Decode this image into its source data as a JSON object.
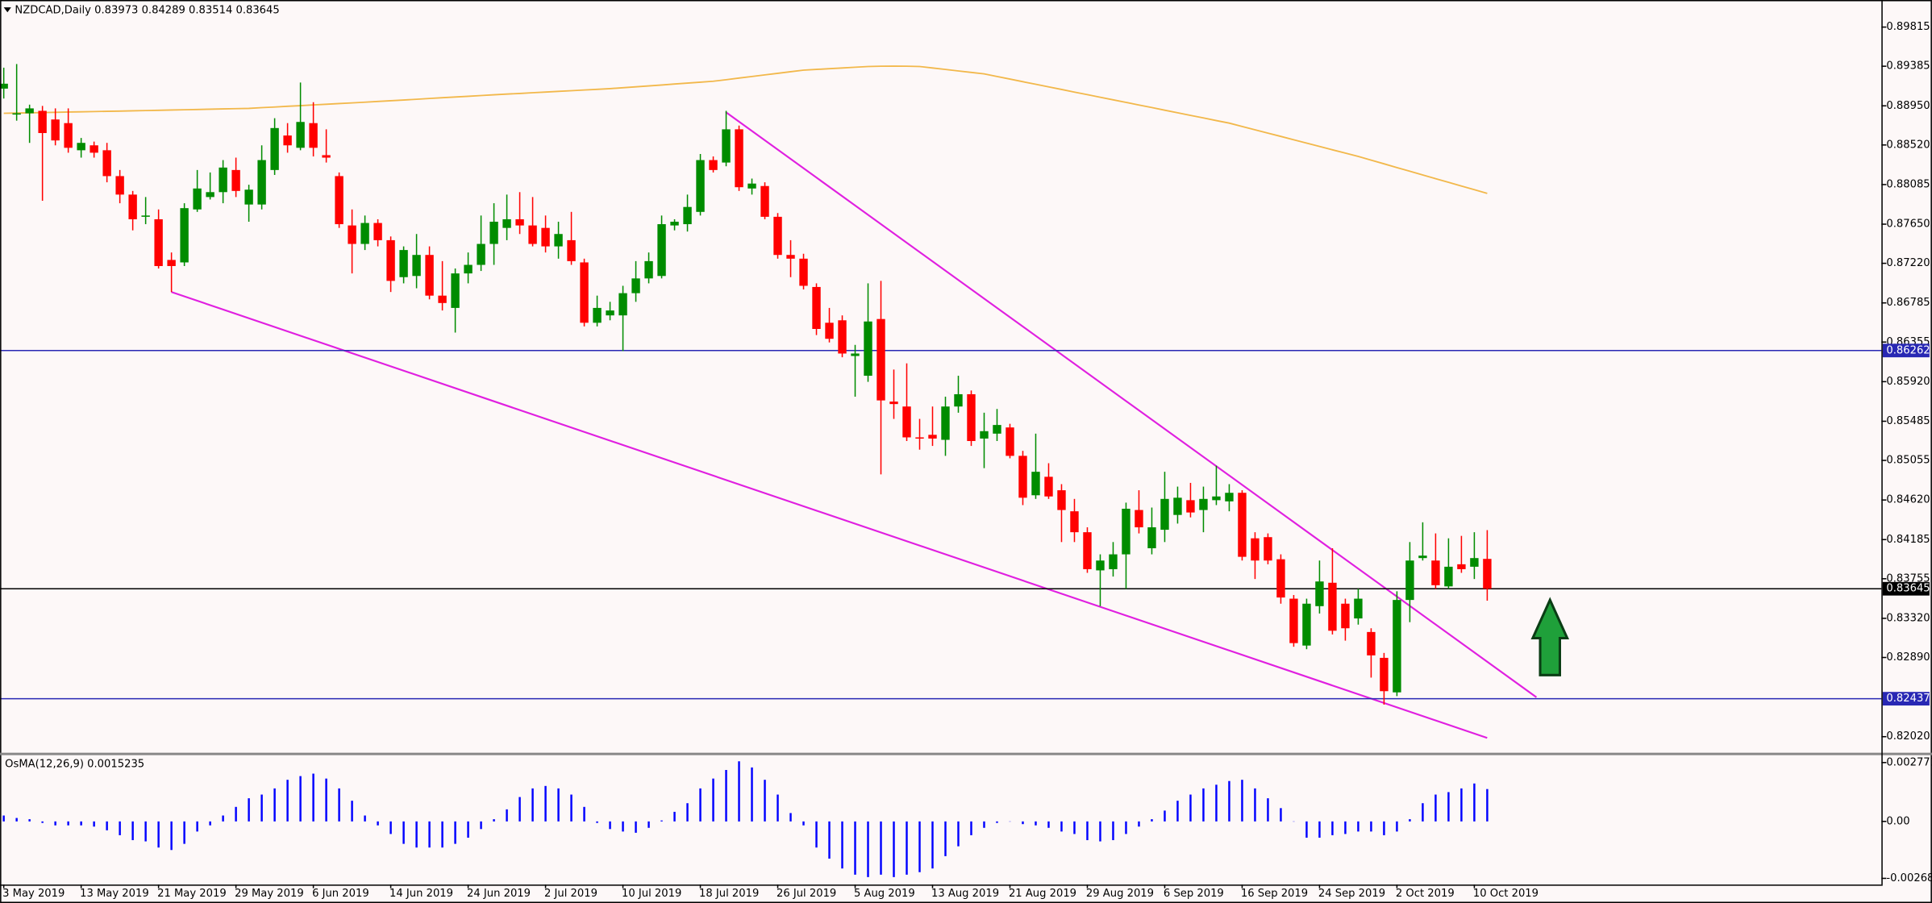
{
  "chart_data": [
    {
      "type": "candlestick",
      "title": "NZDCAD,Daily  0.83973 0.84289 0.83514 0.83645",
      "categories": [
        "3 May 2019",
        null,
        null,
        null,
        null,
        null,
        "13 May 2019",
        null,
        null,
        null,
        null,
        null,
        "21 May 2019",
        null,
        null,
        null,
        null,
        null,
        "29 May 2019",
        null,
        null,
        null,
        null,
        null,
        "6 Jun 2019",
        null,
        null,
        null,
        null,
        null,
        "14 Jun 2019",
        null,
        null,
        null,
        null,
        null,
        "24 Jun 2019",
        null,
        null,
        null,
        null,
        null,
        "2 Jul 2019",
        null,
        null,
        null,
        null,
        null,
        "10 Jul 2019",
        null,
        null,
        null,
        null,
        null,
        "18 Jul 2019",
        null,
        null,
        null,
        null,
        null,
        "26 Jul 2019",
        null,
        null,
        null,
        null,
        null,
        "5 Aug 2019",
        null,
        null,
        null,
        null,
        null,
        "13 Aug 2019",
        null,
        null,
        null,
        null,
        null,
        "21 Aug 2019",
        null,
        null,
        null,
        null,
        null,
        "29 Aug 2019",
        null,
        null,
        null,
        null,
        null,
        "6 Sep 2019",
        null,
        null,
        null,
        null,
        null,
        "16 Sep 2019",
        null,
        null,
        null,
        null,
        null,
        "24 Sep 2019",
        null,
        null,
        null,
        null,
        null,
        "2 Oct 2019",
        null,
        null,
        null,
        null,
        null,
        "10 Oct 2019",
        null
      ],
      "open": [
        0.89139,
        0.88854,
        0.88868,
        0.88895,
        0.888,
        0.8876,
        0.88462,
        0.88516,
        0.88462,
        0.88178,
        0.87975,
        0.87731,
        0.87704,
        0.87257,
        0.8723,
        0.87812,
        0.87948,
        0.88002,
        0.88245,
        0.87866,
        0.87866,
        0.88245,
        0.88624,
        0.88489,
        0.8876,
        0.88408,
        0.88178,
        0.87636,
        0.87433,
        0.87663,
        0.87474,
        0.87068,
        0.87081,
        0.87312,
        0.86865,
        0.8673,
        0.87109,
        0.87203,
        0.87433,
        0.87609,
        0.87704,
        0.87636,
        0.87609,
        0.87406,
        0.87474,
        0.8723,
        0.86567,
        0.86648,
        0.86648,
        0.86892,
        0.87054,
        0.87081,
        0.87636,
        0.8765,
        0.87785,
        0.88354,
        0.88327,
        0.88692,
        0.88042,
        0.88069,
        0.87731,
        0.87312,
        0.87271,
        0.8696,
        0.86567,
        0.86594,
        0.86202,
        0.85985,
        0.86608,
        0.85701,
        0.85647,
        0.85308,
        0.85336,
        0.85281,
        0.85647,
        0.85782,
        0.85295,
        0.85349,
        0.85417,
        0.85105,
        0.84672,
        0.84875,
        0.84727,
        0.84496,
        0.84266,
        0.83847,
        0.8386,
        0.84023,
        0.8451,
        0.8409,
        0.84293,
        0.84456,
        0.84618,
        0.8451,
        0.84618,
        0.84605,
        0.84699,
        0.84199,
        0.84212,
        0.83969,
        0.83536,
        0.83021,
        0.83454,
        0.83711,
        0.83481,
        0.83319,
        0.8317,
        0.82886,
        0.82507,
        0.83522,
        0.83982,
        0.83955,
        0.83671,
        0.83914,
        0.83887,
        0.83973
      ],
      "high": [
        0.89369,
        0.89409,
        0.88963,
        0.88949,
        0.88922,
        0.88922,
        0.88597,
        0.88557,
        0.88543,
        0.88245,
        0.88015,
        0.87948,
        0.87812,
        0.87339,
        0.8788,
        0.88245,
        0.88218,
        0.88354,
        0.88381,
        0.88083,
        0.88516,
        0.88814,
        0.8876,
        0.89206,
        0.8899,
        0.88692,
        0.88218,
        0.87812,
        0.87745,
        0.87704,
        0.87515,
        0.87406,
        0.87542,
        0.87406,
        0.87244,
        0.87163,
        0.87339,
        0.87745,
        0.8788,
        0.87975,
        0.88002,
        0.87948,
        0.87745,
        0.87677,
        0.87785,
        0.87271,
        0.86865,
        0.86797,
        0.86973,
        0.87244,
        0.87339,
        0.87745,
        0.87704,
        0.87975,
        0.88421,
        0.88394,
        0.88895,
        0.88733,
        0.88151,
        0.8811,
        0.87772,
        0.87474,
        0.87325,
        0.87,
        0.8673,
        0.86648,
        0.86324,
        0.87,
        0.87027,
        0.86053,
        0.86121,
        0.85511,
        0.85647,
        0.85755,
        0.85985,
        0.85823,
        0.85579,
        0.8562,
        0.85457,
        0.8516,
        0.85349,
        0.85024,
        0.84794,
        0.84632,
        0.8432,
        0.84023,
        0.84158,
        0.84591,
        0.84727,
        0.84537,
        0.8493,
        0.84767,
        0.84808,
        0.84767,
        0.84997,
        0.84794,
        0.84727,
        0.84266,
        0.84253,
        0.84023,
        0.83576,
        0.83536,
        0.83955,
        0.8409,
        0.83536,
        0.83644,
        0.83211,
        0.8294,
        0.83617,
        0.84158,
        0.84375,
        0.84253,
        0.84199,
        0.84226,
        0.84266,
        0.84289
      ],
      "low": [
        0.8903,
        0.88787,
        0.88543,
        0.87907,
        0.88516,
        0.88435,
        0.88381,
        0.88381,
        0.8811,
        0.8788,
        0.87582,
        0.8765,
        0.87163,
        0.86905,
        0.8719,
        0.87785,
        0.87921,
        0.8788,
        0.87948,
        0.87677,
        0.87812,
        0.88191,
        0.88435,
        0.88462,
        0.88394,
        0.88327,
        0.87609,
        0.87109,
        0.87366,
        0.87406,
        0.86905,
        0.87,
        0.86946,
        0.86824,
        0.86702,
        0.86459,
        0.87,
        0.87136,
        0.87203,
        0.87474,
        0.87542,
        0.87406,
        0.87339,
        0.87271,
        0.87203,
        0.86527,
        0.86527,
        0.86594,
        0.86256,
        0.86797,
        0.87,
        0.87054,
        0.87582,
        0.87569,
        0.87745,
        0.88218,
        0.88286,
        0.88015,
        0.87975,
        0.87704,
        0.87271,
        0.87068,
        0.86933,
        0.86432,
        0.86351,
        0.86188,
        0.85755,
        0.85918,
        0.84902,
        0.85511,
        0.85268,
        0.85173,
        0.85214,
        0.85105,
        0.85579,
        0.85214,
        0.8497,
        0.85268,
        0.85078,
        0.84564,
        0.84632,
        0.84632,
        0.84158,
        0.84158,
        0.8382,
        0.83454,
        0.83779,
        0.83644,
        0.84253,
        0.84023,
        0.84158,
        0.84361,
        0.84429,
        0.84266,
        0.84564,
        0.84496,
        0.83955,
        0.83752,
        0.83914,
        0.83481,
        0.83008,
        0.82981,
        0.83373,
        0.83143,
        0.83075,
        0.83251,
        0.82669,
        0.82372,
        0.82466,
        0.83278,
        0.83955,
        0.83644,
        0.83644,
        0.8382,
        0.83752,
        0.83514
      ],
      "close": [
        0.89193,
        0.88868,
        0.88922,
        0.88651,
        0.8857,
        0.88489,
        0.88543,
        0.88435,
        0.88178,
        0.87975,
        0.87704,
        0.87745,
        0.8719,
        0.8719,
        0.87826,
        0.88042,
        0.88002,
        0.88272,
        0.88015,
        0.88029,
        0.88354,
        0.88706,
        0.88516,
        0.88773,
        0.88489,
        0.88381,
        0.8765,
        0.87433,
        0.87663,
        0.87474,
        0.87027,
        0.87366,
        0.87312,
        0.86865,
        0.86784,
        0.87109,
        0.87203,
        0.87433,
        0.87677,
        0.87704,
        0.87636,
        0.87433,
        0.87406,
        0.87542,
        0.87244,
        0.86567,
        0.8673,
        0.86702,
        0.86892,
        0.87054,
        0.87244,
        0.8765,
        0.87677,
        0.87839,
        0.88354,
        0.88245,
        0.88692,
        0.88056,
        0.88096,
        0.87731,
        0.87312,
        0.87271,
        0.86973,
        0.86499,
        0.86391,
        0.86229,
        0.86229,
        0.86581,
        0.85714,
        0.85674,
        0.85308,
        0.85295,
        0.85295,
        0.85647,
        0.85782,
        0.85268,
        0.85376,
        0.85444,
        0.85105,
        0.84645,
        0.8493,
        0.84659,
        0.8451,
        0.84266,
        0.8386,
        0.83955,
        0.84023,
        0.84524,
        0.8432,
        0.8432,
        0.84632,
        0.84645,
        0.84483,
        0.84632,
        0.84659,
        0.84699,
        0.83996,
        0.83955,
        0.83955,
        0.83549,
        0.83048,
        0.83481,
        0.83725,
        0.83184,
        0.83211,
        0.83536,
        0.82913,
        0.8252,
        0.83522,
        0.83955,
        0.84009,
        0.83684,
        0.83887,
        0.8386,
        0.83982,
        0.83645
      ],
      "up_color": "#008c00",
      "down_color": "#ff0000",
      "overlay": {
        "color": "#f2b84b",
        "values": [
          0.88868,
          0.88871,
          0.88873,
          0.88876,
          0.88879,
          0.88882,
          0.88884,
          0.88887,
          0.8889,
          0.88892,
          0.88895,
          0.88898,
          0.88901,
          0.88904,
          0.88907,
          0.8891,
          0.88913,
          0.88916,
          0.88919,
          0.88922,
          0.8893,
          0.88937,
          0.88945,
          0.88952,
          0.8896,
          0.88967,
          0.88975,
          0.88982,
          0.8899,
          0.88998,
          0.89006,
          0.89014,
          0.89022,
          0.89031,
          0.89039,
          0.89047,
          0.89055,
          0.89063,
          0.89071,
          0.89079,
          0.89086,
          0.89094,
          0.89101,
          0.89109,
          0.89116,
          0.89124,
          0.89131,
          0.89139,
          0.89149,
          0.89159,
          0.89169,
          0.89179,
          0.8919,
          0.892,
          0.8921,
          0.8922,
          0.89237,
          0.89255,
          0.89272,
          0.8929,
          0.89307,
          0.89325,
          0.89342,
          0.8935,
          0.89358,
          0.89366,
          0.89374,
          0.89382,
          0.89385,
          0.89386,
          0.89385,
          0.89382,
          0.89366,
          0.8935,
          0.89333,
          0.89317,
          0.89301,
          0.89272,
          0.89244,
          0.89215,
          0.89187,
          0.89158,
          0.8913,
          0.89101,
          0.89073,
          0.89044,
          0.89016,
          0.88988,
          0.88959,
          0.88931,
          0.88902,
          0.88874,
          0.88845,
          0.88817,
          0.88788,
          0.8876,
          0.88723,
          0.88687,
          0.8865,
          0.88614,
          0.88577,
          0.8854,
          0.88504,
          0.88467,
          0.88431,
          0.88394,
          0.88353,
          0.88313,
          0.88272,
          0.88232,
          0.88191,
          0.8815,
          0.8811,
          0.88069,
          0.88029,
          0.87988
        ]
      },
      "levels": [
        {
          "value": 0.86262,
          "color": "#2828b4"
        },
        {
          "value": 0.83645,
          "color": "#000000"
        },
        {
          "value": 0.82437,
          "color": "#2828b4"
        }
      ],
      "ylim": [
        0.81844,
        0.90099
      ],
      "yticks": [
        0.89815,
        0.89385,
        {
          "value": 0.8895,
          "label": "0.88950"
        },
        {
          "value": 0.8852,
          "label": "0.88520"
        },
        0.88085,
        {
          "value": 0.8765,
          "label": "0.87650"
        },
        {
          "value": 0.8722,
          "label": "0.87220"
        },
        0.86785,
        0.86355,
        {
          "value": 0.8592,
          "label": "0.85920"
        },
        0.85485,
        0.85055,
        {
          "value": 0.8462,
          "label": "0.84620"
        },
        0.84185,
        0.83755,
        {
          "value": 0.8332,
          "label": "0.83320"
        },
        {
          "value": 0.8289,
          "label": "0.82890"
        },
        {
          "value": 0.8202,
          "label": "0.82020"
        }
      ],
      "background": "#fdf8f8"
    },
    {
      "type": "bar",
      "title": "OsMA(12,26,9) 0.0015235",
      "values": [
        0.000278,
        0.000162,
        0.000104,
        -7e-05,
        -0.000186,
        -0.000186,
        -0.000186,
        -0.000244,
        -0.000418,
        -0.00065,
        -0.000882,
        -0.00094,
        -0.00123,
        -0.001346,
        -0.001056,
        -0.000476,
        -0.000186,
        0.000278,
        0.000684,
        0.00109,
        0.001264,
        0.001554,
        0.00196,
        0.002134,
        0.00225,
        0.002018,
        0.001554,
        0.000974,
        0.000278,
        -0.000186,
        -0.000592,
        -0.001056,
        -0.00123,
        -0.00123,
        -0.00123,
        -0.001056,
        -0.000766,
        -0.00036,
        0.000104,
        0.000568,
        0.001148,
        0.001554,
        0.00167,
        0.001554,
        0.001264,
        0.000684,
        -7e-05,
        -0.00036,
        -0.000476,
        -0.000534,
        -0.000302,
        4.6e-05,
        0.000452,
        0.000858,
        0.001554,
        0.002018,
        0.002424,
        0.00283,
        0.00254,
        0.00196,
        0.001264,
        0.000394,
        -0.000186,
        -0.00123,
        -0.001752,
        -0.002216,
        -0.002506,
        -0.002622,
        -0.002506,
        -0.002622,
        -0.002506,
        -0.00239,
        -0.002216,
        -0.001636,
        -0.001172,
        -0.00065,
        -0.000302,
        -7e-05,
        -1.2e-05,
        -0.000128,
        -0.000186,
        -0.000302,
        -0.000476,
        -0.000592,
        -0.000882,
        -0.00094,
        -0.000882,
        -0.000592,
        -0.000244,
        0.000104,
        0.00051,
        0.000974,
        0.001264,
        0.001554,
        0.001728,
        0.001902,
        0.00196,
        0.001554,
        0.00109,
        0.000626,
        -1.2e-05,
        -0.000766,
        -0.000766,
        -0.00065,
        -0.000592,
        -0.000476,
        -0.000476,
        -0.00065,
        -0.000476,
        0.000104,
        0.000858,
        0.001264,
        0.00138,
        0.001554,
        0.001786,
        0.0015235
      ],
      "color": "#0000ff",
      "ylim": [
        -0.002971,
        0.0030611
      ],
      "yticks": [
        0.0027711,
        {
          "value": 0,
          "label": "0.00"
        },
        -0.002681
      ]
    }
  ]
}
